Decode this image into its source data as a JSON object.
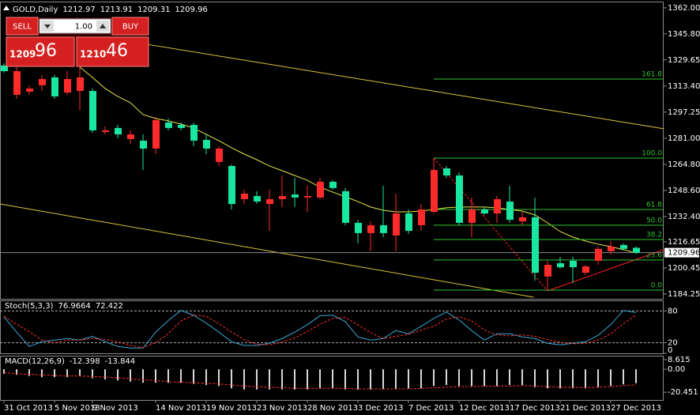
{
  "chart_data": [
    {
      "type": "candlestick",
      "title": "GOLD,Daily",
      "categories": [
        "31 Oct 2013",
        null,
        null,
        null,
        "5 Nov 2013",
        null,
        null,
        "9 Nov 2013",
        null,
        null,
        null,
        null,
        "14 Nov 2013",
        null,
        null,
        null,
        "19 Nov 2013",
        null,
        null,
        null,
        "23 Nov 2013",
        null,
        null,
        null,
        "28 Nov 2013",
        null,
        null,
        null,
        "3 Dec 2013",
        null,
        null,
        null,
        "7 Dec 2013",
        null,
        null,
        null,
        "12 Dec 2013",
        null,
        null,
        null,
        "17 Dec 2013",
        null,
        null,
        null,
        "21 Dec 2013",
        null,
        null,
        null,
        "27 Dec 2013",
        null,
        null
      ],
      "open": [
        1326.2,
        1308.0,
        1309.9,
        1313.9,
        1318.8,
        1309.4,
        1310.4,
        1310.4,
        1284.9,
        1287.4,
        1280.5,
        1279.5,
        1274.6,
        1290.8,
        1289.3,
        1289.3,
        1280.0,
        1266.3,
        1263.8,
        1243.2,
        1245.1,
        1240.2,
        1243.2,
        1246.1,
        1244.2,
        1244.2,
        1254.0,
        1248.1,
        1228.5,
        1222.1,
        1227.0,
        1220.6,
        1234.3,
        1227.0,
        1235.3,
        1262.3,
        1257.9,
        1228.5,
        1236.8,
        1234.3,
        1241.7,
        1229.4,
        1231.9,
        1195.1,
        1203.4,
        1204.9,
        1197.5,
        1204.9,
        1210.8,
        1214.7,
        1212.97
      ],
      "high": [
        1327.6,
        1325.2,
        1313.9,
        1320.3,
        1320.3,
        1322.7,
        1325.2,
        1311.9,
        1288.3,
        1289.3,
        1285.9,
        1283.4,
        1294.2,
        1293.3,
        1290.8,
        1290.8,
        1283.4,
        1276.1,
        1264.8,
        1249.1,
        1248.1,
        1249.1,
        1257.9,
        1256.4,
        1251.5,
        1256.4,
        1254.9,
        1250.1,
        1230.4,
        1229.4,
        1251.5,
        1246.6,
        1236.8,
        1240.2,
        1268.7,
        1263.8,
        1259.9,
        1244.2,
        1238.3,
        1245.1,
        1251.5,
        1235.3,
        1244.2,
        1204.9,
        1207.3,
        1207.3,
        1202.4,
        1213.7,
        1217.2,
        1215.7,
        1213.91
      ],
      "low": [
        1321.7,
        1305.5,
        1308.0,
        1310.4,
        1305.5,
        1308.0,
        1298.2,
        1284.4,
        1283.4,
        1281.0,
        1277.5,
        1261.3,
        1271.2,
        1285.9,
        1285.9,
        1276.1,
        1271.2,
        1263.8,
        1236.8,
        1240.2,
        1240.2,
        1223.5,
        1238.3,
        1238.3,
        1235.3,
        1243.2,
        1249.1,
        1227.0,
        1215.7,
        1210.8,
        1219.6,
        1210.8,
        1221.6,
        1223.5,
        1234.3,
        1256.4,
        1227.0,
        1219.6,
        1233.4,
        1228.5,
        1228.5,
        1227.0,
        1192.6,
        1186.2,
        1200.0,
        1191.1,
        1196.0,
        1202.4,
        1208.8,
        1211.8,
        1209.31
      ],
      "close": [
        1322.7,
        1322.7,
        1311.9,
        1317.8,
        1307.0,
        1317.8,
        1318.8,
        1285.9,
        1285.9,
        1283.4,
        1283.4,
        1274.6,
        1292.3,
        1287.4,
        1287.4,
        1279.5,
        1274.6,
        1274.6,
        1240.2,
        1246.6,
        1241.7,
        1243.2,
        1245.1,
        1244.2,
        1245.1,
        1254.0,
        1250.1,
        1228.5,
        1222.1,
        1227.0,
        1222.1,
        1234.3,
        1223.5,
        1236.8,
        1261.3,
        1257.9,
        1228.5,
        1236.8,
        1234.3,
        1243.2,
        1230.4,
        1231.9,
        1197.5,
        1202.4,
        1200.9,
        1200.9,
        1201.4,
        1212.3,
        1213.7,
        1212.3,
        1209.96
      ],
      "up_color": "#ff2a2a",
      "down_color": "#19e6a0",
      "ylim": [
        1181.3,
        1365.4
      ],
      "yticks": [
        {
          "value": 1362,
          "label": "1362.00"
        },
        {
          "value": 1345.8,
          "label": "1345.80"
        },
        1329.65,
        {
          "value": 1313.4,
          "label": "1313.40"
        },
        1297.25,
        {
          "value": 1281,
          "label": "1281.00"
        },
        {
          "value": 1264.8,
          "label": "1264.80"
        },
        {
          "value": 1248.6,
          "label": "1248.60"
        },
        {
          "value": 1232.4,
          "label": "1232.40"
        },
        1216.65,
        1200.45,
        1184.25
      ],
      "current_price": 1209.96,
      "moving_average": {
        "color": "#e6e64c",
        "values": [
          null,
          null,
          null,
          null,
          null,
          null,
          1325.2,
          1318.8,
          1311.9,
          1307.0,
          1303.1,
          1295.7,
          1293.3,
          1291.8,
          1289.8,
          1287.4,
          1283.4,
          1279.5,
          1275.1,
          1271.2,
          1267.7,
          1263.8,
          1260.9,
          1257.9,
          1254.9,
          1250.6,
          1247.6,
          1244.7,
          1241.7,
          1238.3,
          1236.3,
          1235.3,
          1235.3,
          1235.8,
          1236.8,
          1237.8,
          1238.3,
          1238.3,
          1238.3,
          1237.8,
          1236.8,
          1235.8,
          1233.4,
          1228.5,
          1223.1,
          1219.6,
          1217.2,
          1215.2,
          1213.7,
          1211.8,
          1209.8
        ]
      },
      "fibonacci": {
        "color": "#2fc42f",
        "levels": [
          {
            "level": 161.8,
            "price": 1317.8
          },
          {
            "level": {
              "value": 100,
              "label": "100.0"
            },
            "price": 1268.7
          },
          {
            "level": 61.8,
            "price": 1236.8
          },
          {
            "level": {
              "value": 50,
              "label": "50.0"
            },
            "price": 1227.0
          },
          {
            "level": 38.2,
            "price": 1218.1
          },
          {
            "level": 23.6,
            "price": 1205.4
          },
          {
            "level": {
              "value": 0,
              "label": "0.0"
            },
            "price": 1186.7
          }
        ]
      },
      "trendlines": [
        {
          "color": "#d9c23a",
          "x": [
            10.9,
            52.2
          ],
          "y": [
            1339.9,
            1286.9
          ]
        },
        {
          "color": "#d9c23a",
          "x": [
            -0.3,
            41.9
          ],
          "y": [
            1240.2,
            1182.3
          ]
        },
        {
          "color": "#ff2020",
          "x": [
            43,
            52.2
          ],
          "y": [
            1186.2,
            1211.8
          ]
        },
        {
          "color": "#ff2020",
          "style": "dashed",
          "x": [
            34,
            43
          ],
          "y": [
            1268.7,
            1186.2
          ]
        }
      ]
    },
    {
      "type": "line",
      "title": "Stoch(5,3,3)",
      "ylim": [
        0,
        100
      ],
      "yticks": [
        0,
        20,
        80
      ],
      "grid": "dashed",
      "series": [
        {
          "color": "#3aa7d6",
          "values": [
            69,
            40,
            13,
            22,
            25,
            28,
            25,
            32,
            22,
            13,
            10,
            10,
            40,
            62,
            81,
            72,
            57,
            40,
            22,
            15,
            15,
            19,
            28,
            40,
            54,
            71,
            72,
            60,
            31,
            25,
            28,
            43,
            37,
            51,
            66,
            78,
            63,
            43,
            25,
            37,
            37,
            31,
            28,
            19,
            16,
            19,
            22,
            34,
            54,
            81,
            76.9664
          ]
        },
        {
          "color": "#ff3030",
          "style": "dashed",
          "values": [
            70,
            55,
            41,
            25,
            20,
            25,
            25,
            28,
            26,
            22,
            15,
            11,
            20,
            37,
            61,
            72,
            70,
            56,
            40,
            26,
            17,
            16,
            21,
            29,
            41,
            55,
            66,
            68,
            54,
            39,
            28,
            32,
            36,
            44,
            51,
            65,
            69,
            61,
            44,
            35,
            33,
            35,
            32,
            26,
            21,
            18,
            19,
            25,
            37,
            56,
            72.422
          ]
        }
      ]
    },
    {
      "type": "line",
      "title": "MACD(12,26,9)",
      "ylim": [
        -27.37,
        12.08
      ],
      "yticks": [
        8.615,
        {
          "value": 0,
          "label": "0.00"
        },
        -20.451
      ],
      "series": [
        {
          "type": "bar",
          "color": "#d8d8d8",
          "values": [
            -4,
            -5,
            -6,
            -7,
            -7,
            -7,
            -6,
            -8,
            -9,
            -10,
            -11,
            -12,
            -12,
            -12,
            -12,
            -13,
            -14,
            -15,
            -17,
            -18,
            -18,
            -18,
            -18,
            -18,
            -18,
            -17,
            -17,
            -18,
            -18,
            -18,
            -18,
            -18,
            -17,
            -17,
            -15,
            -14,
            -15,
            -15,
            -15,
            -15,
            -14,
            -14,
            -16,
            -17,
            -17,
            -17,
            -17,
            -16,
            -15,
            -13.5,
            -12.398
          ]
        },
        {
          "color": "#ff3030",
          "style": "dashed",
          "values": [
            -3,
            -4,
            -4.5,
            -5,
            -5.5,
            -6,
            -6,
            -6.5,
            -7,
            -7.5,
            -8.5,
            -9.5,
            -10,
            -11,
            -11.5,
            -12,
            -12.5,
            -13,
            -14,
            -15,
            -15.5,
            -16,
            -16.5,
            -17,
            -17,
            -17,
            -17,
            -17,
            -17.5,
            -17.5,
            -17.5,
            -17.5,
            -17.5,
            -17,
            -16.5,
            -16,
            -15.5,
            -15.5,
            -15,
            -15,
            -15,
            -14.5,
            -15,
            -15.5,
            -16,
            -16,
            -16.5,
            -16,
            -15.5,
            -14.5,
            -13.844
          ]
        }
      ]
    }
  ],
  "trade_panel": {
    "sell": "SELL",
    "buy": "BUY",
    "lots": "1.00",
    "bid_big": "1209",
    "bid_pips": "96",
    "ask_big": "1210",
    "ask_pips": "46"
  }
}
